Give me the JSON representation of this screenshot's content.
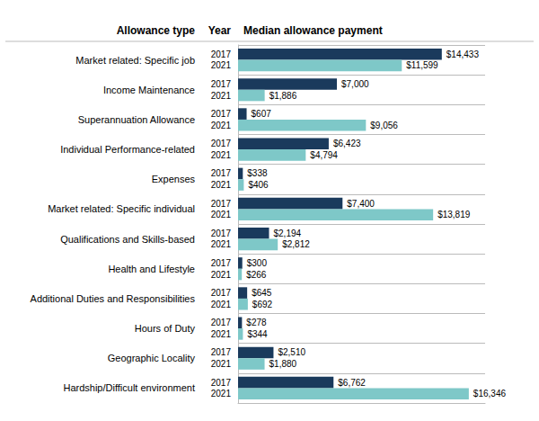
{
  "chart_data": {
    "type": "bar",
    "orientation": "horizontal",
    "ylabel": "Allowance type",
    "xlabel": "Median allowance payment",
    "annotations": [
      "Year"
    ],
    "categories": [
      "Market related: Specific job",
      "Income Maintenance",
      "Superannuation Allowance",
      "Individual Performance-related",
      "Expenses",
      "Market related: Specific individual",
      "Qualifications and Skills-based",
      "Health and Lifestyle",
      "Additional Duties and Responsibilities",
      "Hours of Duty",
      "Geographic Locality",
      "Hardship/Difficult environment"
    ],
    "series": [
      {
        "name": "2017",
        "color": "#1a3a5c",
        "values": [
          14433,
          7000,
          607,
          6423,
          338,
          7400,
          2194,
          300,
          645,
          278,
          2510,
          6762
        ],
        "value_labels": [
          "$14,433",
          "$7,000",
          "$607",
          "$6,423",
          "$338",
          "$7,400",
          "$2,194",
          "$300",
          "$645",
          "$278",
          "$2,510",
          "$6,762"
        ]
      },
      {
        "name": "2021",
        "color": "#7ec8c8",
        "values": [
          11599,
          1886,
          9056,
          4794,
          406,
          13819,
          2812,
          266,
          692,
          344,
          1880,
          16346
        ],
        "value_labels": [
          "$11,599",
          "$1,886",
          "$9,056",
          "$4,794",
          "$406",
          "$13,819",
          "$2,812",
          "$266",
          "$692",
          "$344",
          "$1,880",
          "$16,346"
        ]
      }
    ],
    "xlim": [
      0,
      17500
    ],
    "tick_labels": "y",
    "grid": true,
    "data_labels": true
  }
}
